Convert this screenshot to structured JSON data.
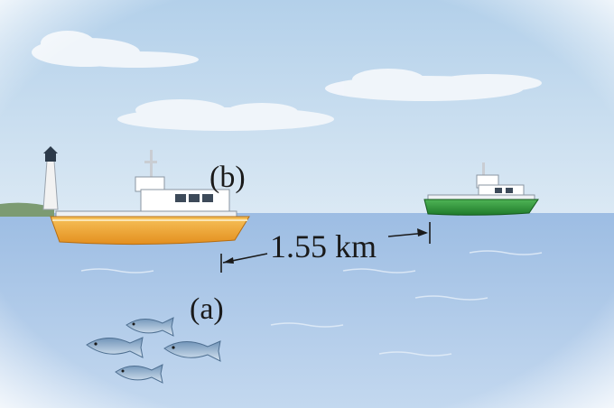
{
  "labels": {
    "point_b": "(b)",
    "point_a": "(a)",
    "distance": "1.55 km"
  },
  "colors": {
    "sky": "#c9dff0",
    "sea": "#a8c6e8",
    "left_boat_hull": "#f0a830",
    "right_boat_hull": "#2e9a3a",
    "fish": "#8fb3d4"
  },
  "icons": [
    "cloud",
    "lighthouse",
    "fishing-boat",
    "fish"
  ]
}
